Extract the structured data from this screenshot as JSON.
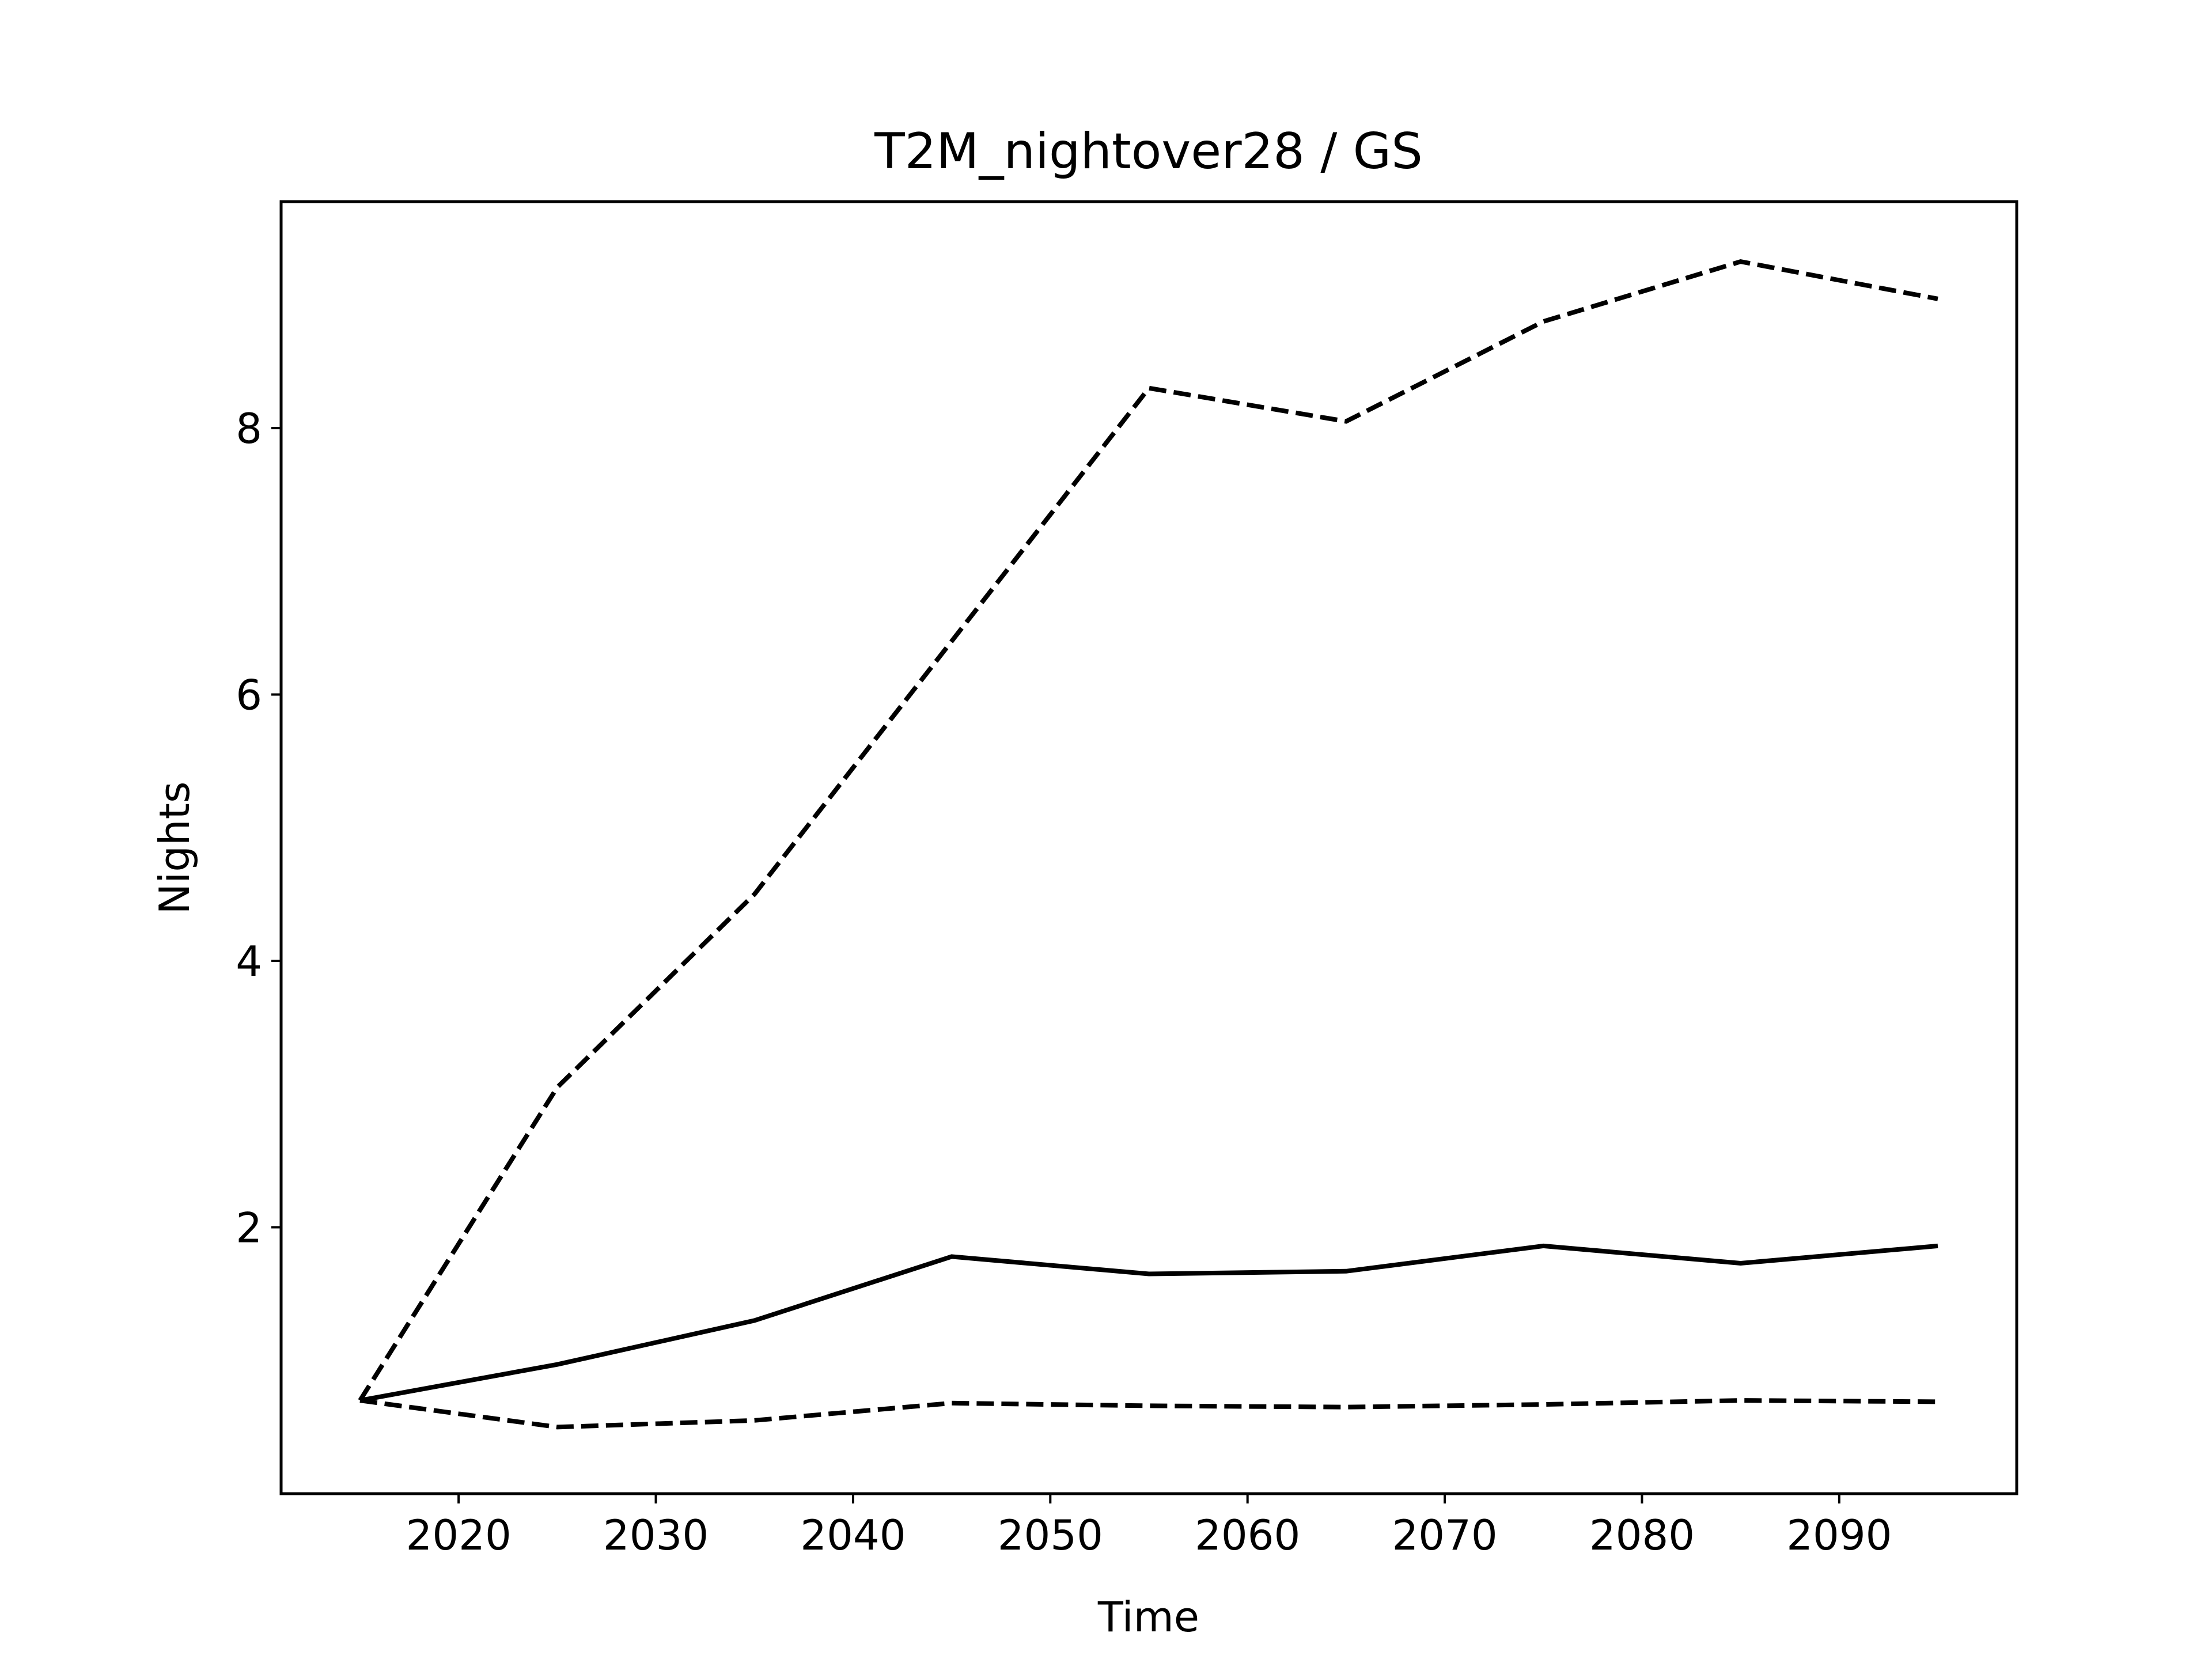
{
  "chart_data": {
    "type": "line",
    "title": "T2M_nightover28 / GS",
    "xlabel": "Time",
    "ylabel": "Nights",
    "x": [
      2015,
      2025,
      2035,
      2045,
      2055,
      2065,
      2075,
      2085,
      2095
    ],
    "xlim": [
      2011,
      2099
    ],
    "ylim": [
      0.0,
      9.7
    ],
    "xticks": [
      2020,
      2030,
      2040,
      2050,
      2060,
      2070,
      2080,
      2090
    ],
    "yticks": [
      2,
      4,
      6,
      8
    ],
    "grid": false,
    "legend": "none",
    "series": [
      {
        "style": "dashed",
        "color": "#000000",
        "values": [
          0.7,
          3.05,
          4.5,
          6.4,
          8.3,
          8.05,
          8.8,
          9.25,
          8.97
        ]
      },
      {
        "style": "solid",
        "color": "#000000",
        "values": [
          0.7,
          0.97,
          1.3,
          1.78,
          1.65,
          1.67,
          1.86,
          1.73,
          1.86
        ]
      },
      {
        "style": "dashed",
        "color": "#000000",
        "values": [
          0.7,
          0.5,
          0.55,
          0.68,
          0.66,
          0.65,
          0.67,
          0.7,
          0.69
        ]
      }
    ]
  }
}
